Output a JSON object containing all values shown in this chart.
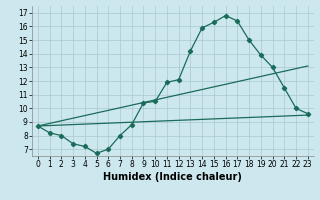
{
  "xlabel": "Humidex (Indice chaleur)",
  "background_color": "#cce8ee",
  "grid_color": "#aac8d0",
  "line_color": "#1a6b5a",
  "xlim": [
    -0.5,
    23.5
  ],
  "ylim": [
    6.5,
    17.5
  ],
  "xticks": [
    0,
    1,
    2,
    3,
    4,
    5,
    6,
    7,
    8,
    9,
    10,
    11,
    12,
    13,
    14,
    15,
    16,
    17,
    18,
    19,
    20,
    21,
    22,
    23
  ],
  "yticks": [
    7,
    8,
    9,
    10,
    11,
    12,
    13,
    14,
    15,
    16,
    17
  ],
  "line1_x": [
    0,
    1,
    2,
    3,
    4,
    5,
    6,
    7,
    8,
    9,
    10,
    11,
    12,
    13,
    14,
    15,
    16,
    17,
    18,
    19,
    20,
    21,
    22,
    23
  ],
  "line1_y": [
    8.7,
    8.2,
    8.0,
    7.4,
    7.2,
    6.7,
    7.0,
    8.0,
    8.8,
    10.4,
    10.5,
    11.9,
    12.1,
    14.2,
    15.9,
    16.3,
    16.8,
    16.4,
    15.0,
    13.9,
    13.0,
    11.5,
    10.0,
    9.6
  ],
  "line2_x": [
    0,
    23
  ],
  "line2_y": [
    8.7,
    9.5
  ],
  "line3_x": [
    0,
    23
  ],
  "line3_y": [
    8.7,
    13.1
  ],
  "fontsize_tick": 5.5,
  "fontsize_label": 7
}
